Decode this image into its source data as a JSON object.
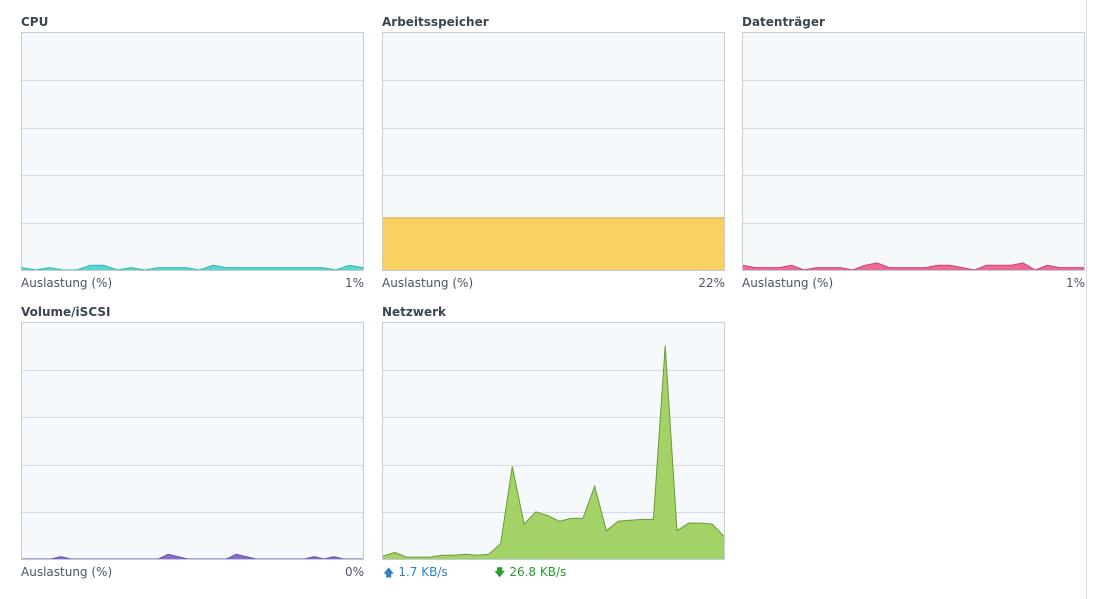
{
  "widgets": {
    "cpu": {
      "title": "CPU",
      "usage_label": "Auslastung (%)",
      "value": "1%",
      "color": "#5ad6d2",
      "stroke": "#36b7b3",
      "max": 100,
      "points": [
        1,
        0,
        1,
        0,
        0,
        2,
        2,
        0,
        1,
        0,
        1,
        1,
        1,
        0,
        2,
        1,
        1,
        1,
        1,
        1,
        1,
        1,
        1,
        0,
        2,
        1
      ]
    },
    "memory": {
      "title": "Arbeitsspeicher",
      "usage_label": "Auslastung (%)",
      "value": "22%",
      "color": "#f9d163",
      "stroke": "#d6a93a",
      "max": 100,
      "points": [
        22,
        22,
        22,
        22,
        22,
        22,
        22,
        22,
        22,
        22,
        22,
        22,
        22,
        22,
        22,
        22,
        22,
        22,
        22,
        22,
        22,
        22,
        22,
        22,
        22,
        22
      ]
    },
    "disk": {
      "title": "Datenträger",
      "usage_label": "Auslastung (%)",
      "value": "1%",
      "color": "#ea6b93",
      "stroke": "#c94673",
      "max": 100,
      "points": [
        2,
        1,
        1,
        1,
        2,
        0,
        1,
        1,
        1,
        0,
        2,
        3,
        1,
        1,
        1,
        1,
        2,
        2,
        1,
        0,
        2,
        2,
        2,
        3,
        0,
        2,
        1,
        1,
        1
      ]
    },
    "volume": {
      "title": "Volume/iSCSI",
      "usage_label": "Auslastung (%)",
      "value": "0%",
      "color": "#8a6bc9",
      "stroke": "#6a4fae",
      "max": 100,
      "points": [
        0,
        0,
        0,
        0,
        1,
        0,
        0,
        0,
        0,
        0,
        0,
        0,
        0,
        0,
        0,
        2,
        1,
        0,
        0,
        0,
        0,
        0,
        2,
        1,
        0,
        0,
        0,
        0,
        0,
        0,
        1,
        0,
        1,
        0,
        0,
        0
      ]
    },
    "network": {
      "title": "Netzwerk",
      "upload": "1.7 KB/s",
      "download": "26.8 KB/s",
      "up_color": "#2e82c9",
      "down_color": "#2d9a2d",
      "color": "#a3d266",
      "stroke": "#6b9a34",
      "max": 250,
      "points": [
        3,
        7,
        2,
        2,
        2,
        4,
        4,
        5,
        4,
        5,
        16,
        98,
        37,
        50,
        46,
        40,
        43,
        43,
        77,
        30,
        40,
        41,
        42,
        42,
        226,
        30,
        38,
        38,
        37,
        24
      ]
    }
  }
}
